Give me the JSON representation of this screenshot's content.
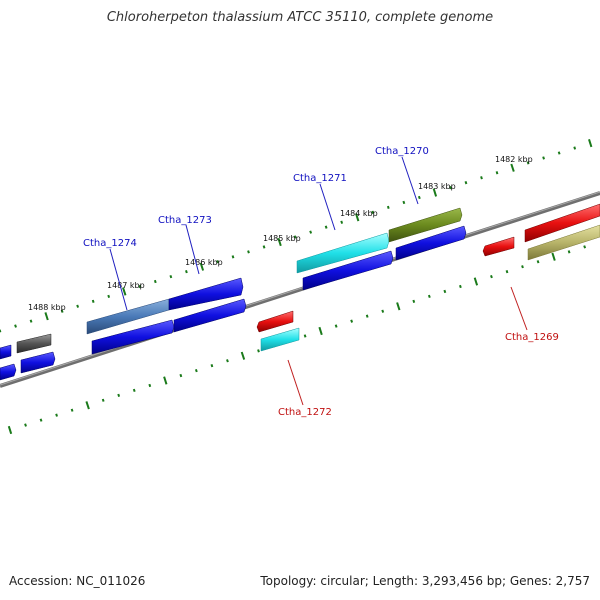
{
  "title": "Chloroherpeton thalassium ATCC 35110, complete genome",
  "accession": "Accession: NC_011026",
  "summary": "Topology: circular; Length: 3,293,456 bp; Genes: 2,757",
  "scale_labels": [
    "1488 kbp",
    "1487 kbp",
    "1486 kbp",
    "1485 kbp",
    "1484 kbp",
    "1483 kbp",
    "1482 kbp"
  ],
  "gene_labels": {
    "forward": [
      "Ctha_1274",
      "Ctha_1273",
      "Ctha_1271",
      "Ctha_1270"
    ],
    "reverse": [
      "Ctha_1272",
      "Ctha_1269"
    ]
  },
  "colors": {
    "backbone": "#777777",
    "ticks": "#1a7a1a",
    "forward_label": "#1010c0",
    "reverse_label": "#c01010",
    "blue": "#1010e0",
    "steel": "#4a7ab8",
    "cyan": "#20e0e8",
    "olive": "#6b8a1e",
    "red": "#e81010",
    "khaki": "#b8b46a",
    "gray": "#555555"
  }
}
